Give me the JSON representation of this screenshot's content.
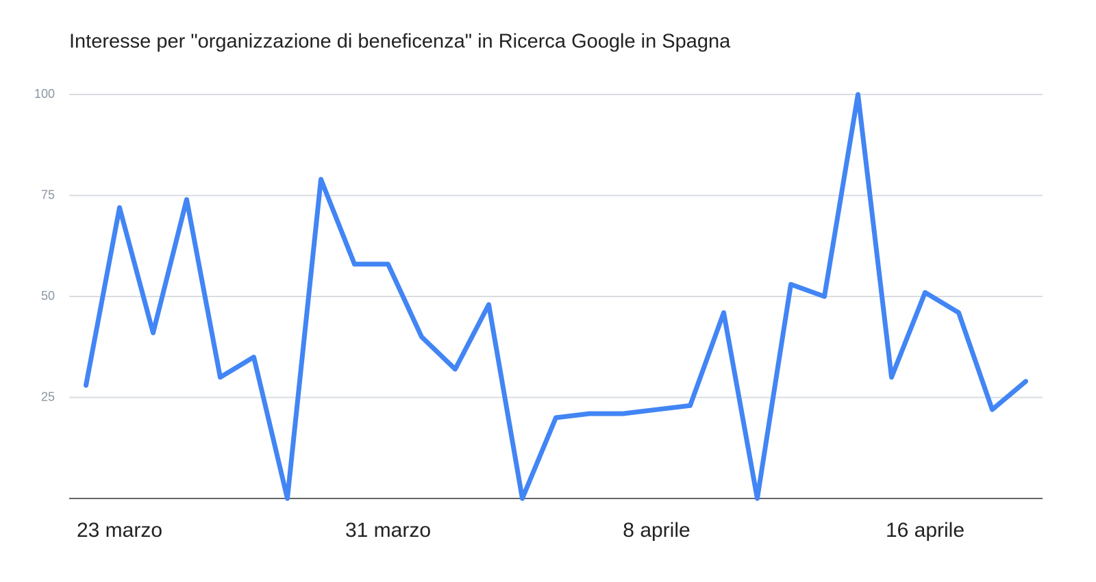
{
  "chart_data": {
    "type": "line",
    "title": "Interesse per \"organizzazione di beneficenza\" in Ricerca Google in Spagna",
    "categories": [
      null,
      "23 marzo",
      null,
      null,
      null,
      null,
      null,
      null,
      null,
      "31 marzo",
      null,
      null,
      null,
      null,
      null,
      null,
      null,
      "8 aprile",
      null,
      null,
      null,
      null,
      null,
      null,
      null,
      "16 aprile",
      null,
      null,
      null
    ],
    "values": [
      28,
      72,
      41,
      74,
      30,
      35,
      0,
      79,
      58,
      58,
      40,
      32,
      48,
      0,
      20,
      21,
      21,
      22,
      23,
      46,
      0,
      53,
      50,
      100,
      30,
      51,
      46,
      22,
      29
    ],
    "color": "#4285f4",
    "ylim": [
      0,
      100
    ],
    "yticks": [
      25,
      50,
      75,
      100
    ],
    "grid": true
  }
}
